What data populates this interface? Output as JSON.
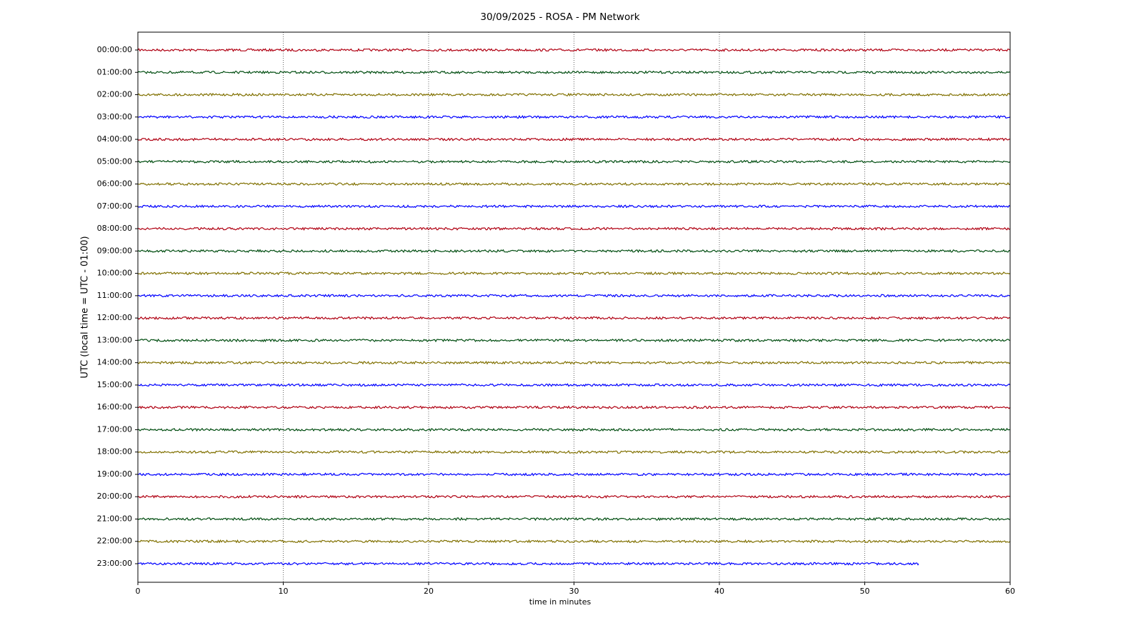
{
  "chart_data": {
    "type": "helicorder",
    "title": "30/09/2025 - ROSA - PM Network",
    "xlabel": "time in minutes",
    "ylabel": "UTC (local time = UTC - 01:00)",
    "xlim": [
      0,
      60
    ],
    "xticks": [
      0,
      10,
      20,
      30,
      40,
      50,
      60
    ],
    "grid": true,
    "colors": [
      "#b00012",
      "#004d10",
      "#807000",
      "#0000ff"
    ],
    "categories": [
      "00:00:00",
      "01:00:00",
      "02:00:00",
      "03:00:00",
      "04:00:00",
      "05:00:00",
      "06:00:00",
      "07:00:00",
      "08:00:00",
      "09:00:00",
      "10:00:00",
      "11:00:00",
      "12:00:00",
      "13:00:00",
      "14:00:00",
      "15:00:00",
      "16:00:00",
      "17:00:00",
      "18:00:00",
      "19:00:00",
      "20:00:00",
      "21:00:00",
      "22:00:00",
      "23:00:00"
    ],
    "trace_end": [
      60,
      60,
      60,
      60,
      60,
      60,
      60,
      60,
      60,
      60,
      60,
      60,
      60,
      60,
      60,
      60,
      60,
      60,
      60,
      60,
      60,
      60,
      60,
      53.7
    ]
  }
}
